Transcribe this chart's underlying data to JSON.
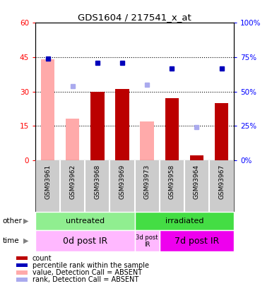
{
  "title": "GDS1604 / 217541_x_at",
  "samples": [
    "GSM93961",
    "GSM93962",
    "GSM93968",
    "GSM93969",
    "GSM93973",
    "GSM93958",
    "GSM93964",
    "GSM93967"
  ],
  "red_bars": [
    0,
    0,
    30,
    31,
    0,
    27,
    2,
    25
  ],
  "pink_bars": [
    44,
    18,
    0,
    0,
    17,
    0,
    0,
    0
  ],
  "dark_blue_squares": [
    74,
    0,
    71,
    71,
    0,
    67,
    0,
    67
  ],
  "light_blue_squares": [
    0,
    54,
    0,
    0,
    55,
    0,
    24,
    0
  ],
  "dark_blue_present": [
    true,
    false,
    true,
    true,
    false,
    true,
    false,
    true
  ],
  "light_blue_present": [
    false,
    true,
    false,
    false,
    true,
    false,
    true,
    false
  ],
  "ylim_left": [
    0,
    60
  ],
  "ylim_right": [
    0,
    100
  ],
  "yticks_left": [
    0,
    15,
    30,
    45,
    60
  ],
  "yticks_right": [
    0,
    25,
    50,
    75,
    100
  ],
  "ytick_labels_left": [
    "0",
    "15",
    "30",
    "45",
    "60"
  ],
  "ytick_labels_right": [
    "0%",
    "25%",
    "50%",
    "75%",
    "100%"
  ],
  "other_groups": [
    {
      "label": "untreated",
      "xstart": 0,
      "xend": 4,
      "color": "#90EE90"
    },
    {
      "label": "irradiated",
      "xstart": 4,
      "xend": 8,
      "color": "#44DD44"
    }
  ],
  "time_groups": [
    {
      "label": "0d post IR",
      "xstart": 0,
      "xend": 4,
      "color": "#FFB8FF",
      "fontsize": 9
    },
    {
      "label": "3d post\nIR",
      "xstart": 4,
      "xend": 5,
      "color": "#FFB8FF",
      "fontsize": 6
    },
    {
      "label": "7d post IR",
      "xstart": 5,
      "xend": 8,
      "color": "#EE00EE",
      "fontsize": 9
    }
  ],
  "red_color": "#BB0000",
  "pink_color": "#FFAAAA",
  "dark_blue_color": "#0000BB",
  "light_blue_color": "#AAAAEE",
  "bar_width": 0.55,
  "legend_items": [
    {
      "color": "#BB0000",
      "label": "count",
      "marker": "s"
    },
    {
      "color": "#0000BB",
      "label": "percentile rank within the sample",
      "marker": "s"
    },
    {
      "color": "#FFAAAA",
      "label": "value, Detection Call = ABSENT",
      "marker": "s"
    },
    {
      "color": "#AAAAEE",
      "label": "rank, Detection Call = ABSENT",
      "marker": "s"
    }
  ]
}
